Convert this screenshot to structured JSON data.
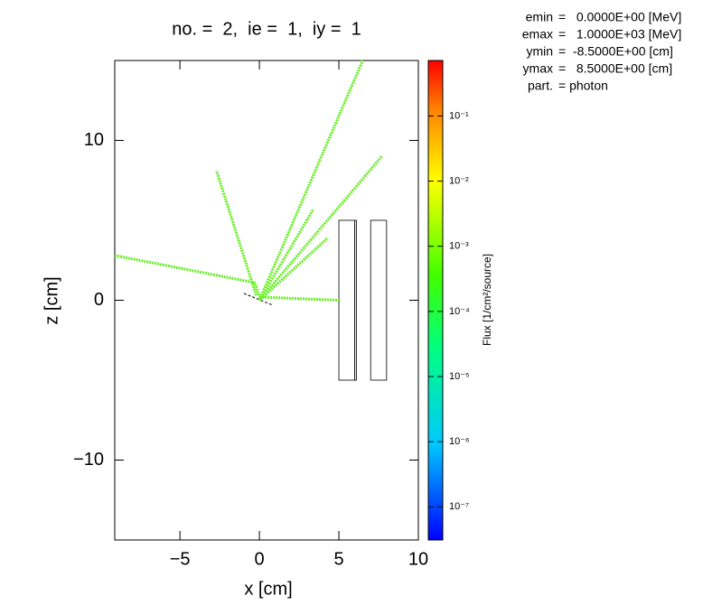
{
  "chart_data": {
    "type": "track",
    "title": "no. =  2,  ie =  1,  iy =  1",
    "xlabel": "x [cm]",
    "ylabel": "z [cm]",
    "xlim": [
      -9.1,
      10
    ],
    "ylim": [
      -15,
      15
    ],
    "xticks": [
      {
        "value": -5,
        "label": "−5"
      },
      0,
      5,
      10
    ],
    "yticks": [
      {
        "value": -10,
        "label": "−10"
      },
      0,
      10
    ],
    "color": "#66ee22",
    "tracks": [
      {
        "x": [
          0,
          6.5
        ],
        "y": [
          0,
          15
        ]
      },
      {
        "x": [
          0,
          7.7
        ],
        "y": [
          0,
          9
        ]
      },
      {
        "x": [
          -0.2,
          -2.7
        ],
        "y": [
          0.3,
          8.1
        ]
      },
      {
        "x": [
          0,
          3.4
        ],
        "y": [
          0,
          5.7
        ]
      },
      {
        "x": [
          0,
          4.3
        ],
        "y": [
          0,
          3.9
        ]
      },
      {
        "x": [
          -9.1,
          -0.3,
          0.1
        ],
        "y": [
          2.8,
          1.1,
          0
        ]
      },
      {
        "x": [
          0,
          5
        ],
        "y": [
          0.2,
          0
        ]
      }
    ],
    "regions": [
      {
        "x": [
          5,
          6
        ],
        "y": [
          -5,
          5
        ]
      },
      {
        "x": [
          6,
          6.1
        ],
        "y": [
          -5,
          5
        ]
      },
      {
        "x": [
          7,
          8
        ],
        "y": [
          -5,
          5
        ]
      }
    ],
    "colorbar": {
      "label": "Flux [1/cm²/source]",
      "scale": "log",
      "lim": [
        3.1e-08,
        0.71
      ],
      "ticks": [
        {
          "value": 0.1,
          "label": "10⁻¹"
        },
        {
          "value": 0.01,
          "label": "10⁻²"
        },
        {
          "value": 0.001,
          "label": "10⁻³"
        },
        {
          "value": 0.0001,
          "label": "10⁻⁴"
        },
        {
          "value": 1e-05,
          "label": "10⁻⁵"
        },
        {
          "value": 1e-06,
          "label": "10⁻⁶"
        },
        {
          "value": 1e-07,
          "label": "10⁻⁷"
        }
      ]
    },
    "info": [
      {
        "key": "emin",
        "value": "=   0.0000E+00 [MeV]"
      },
      {
        "key": "emax",
        "value": "=   1.0000E+03 [MeV]"
      },
      {
        "key": "ymin",
        "value": "=  -8.5000E+00 [cm]"
      },
      {
        "key": "ymax",
        "value": "=   8.5000E+00 [cm]"
      },
      {
        "key": "part.",
        "value": "= photon"
      }
    ]
  }
}
